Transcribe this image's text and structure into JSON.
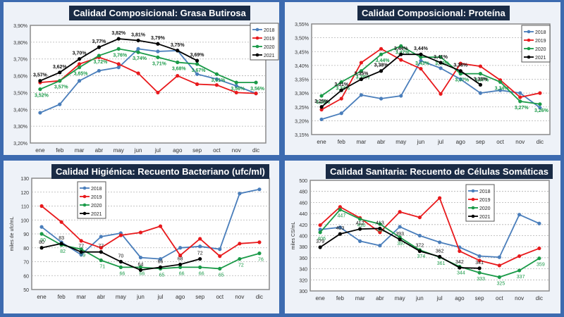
{
  "chart_data": [
    {
      "type": "line",
      "title": "Calidad Composicional: Grasa Butirosa",
      "xlabel": "",
      "ylabel": "",
      "categories": [
        "ene",
        "feb",
        "mar",
        "abr",
        "may",
        "jun",
        "jul",
        "ago",
        "sep",
        "oct",
        "nov",
        "dic"
      ],
      "ylim": [
        3.2,
        3.9
      ],
      "yticks": [
        "3,20%",
        "3,30%",
        "3,40%",
        "3,50%",
        "3,60%",
        "3,70%",
        "3,80%",
        "3,90%"
      ],
      "grid": true,
      "legend": "top-right",
      "series": [
        {
          "name": "2018",
          "color": "#4a7ebb",
          "values": [
            3.38,
            3.43,
            3.57,
            3.63,
            3.65,
            3.76,
            3.745,
            3.75,
            3.61,
            3.58,
            3.54,
            3.495
          ],
          "labels": null
        },
        {
          "name": "2019",
          "color": "#e8191c",
          "values": [
            3.56,
            3.57,
            3.67,
            3.71,
            3.67,
            3.615,
            3.5,
            3.6,
            3.55,
            3.545,
            3.5,
            3.495
          ],
          "labels": null
        },
        {
          "name": "2020",
          "color": "#1a9a48",
          "values": [
            3.52,
            3.57,
            3.65,
            3.72,
            3.76,
            3.74,
            3.71,
            3.68,
            3.67,
            3.61,
            3.56,
            3.56
          ],
          "labels": [
            "3,52%",
            "3,57%",
            "3,65%",
            "3,72%",
            "3,76%",
            "3,74%",
            "3,71%",
            "3,68%",
            "3,67%",
            "3,61%",
            "3,56%",
            "3,56%"
          ]
        },
        {
          "name": "2021",
          "color": "#000000",
          "values": [
            3.57,
            3.62,
            3.7,
            3.77,
            3.82,
            3.81,
            3.79,
            3.75,
            3.69,
            null,
            null,
            null
          ],
          "labels": [
            "3,57%",
            "3,62%",
            "3,70%",
            "3,77%",
            "3,82%",
            "3,81%",
            "3,79%",
            "3,75%",
            "3,69%",
            null,
            null,
            null
          ]
        }
      ]
    },
    {
      "type": "line",
      "title": "Calidad Composicional: Proteína",
      "xlabel": "",
      "ylabel": "",
      "categories": [
        "ene",
        "feb",
        "mar",
        "abr",
        "may",
        "jun",
        "jul",
        "ago",
        "sep",
        "oct",
        "nov",
        "dic"
      ],
      "ylim": [
        3.15,
        3.55
      ],
      "yticks": [
        "3,15%",
        "3,20%",
        "3,25%",
        "3,30%",
        "3,35%",
        "3,40%",
        "3,45%",
        "3,50%",
        "3,55%"
      ],
      "grid": true,
      "legend": "top-right",
      "series": [
        {
          "name": "2018",
          "color": "#4a7ebb",
          "values": [
            3.205,
            3.227,
            3.293,
            3.28,
            3.29,
            3.417,
            3.39,
            3.35,
            3.3,
            3.31,
            3.3,
            3.247
          ],
          "labels": null
        },
        {
          "name": "2019",
          "color": "#e8191c",
          "values": [
            3.24,
            3.28,
            3.41,
            3.46,
            3.42,
            3.388,
            3.297,
            3.407,
            3.397,
            3.347,
            3.285,
            3.3
          ],
          "labels": null
        },
        {
          "name": "2020",
          "color": "#1a9a48",
          "values": [
            3.29,
            3.34,
            3.38,
            3.44,
            3.47,
            3.43,
            3.43,
            3.37,
            3.37,
            3.34,
            3.27,
            3.26
          ],
          "labels": [
            "3,29%",
            "3,34%",
            "3,38%",
            "3,44%",
            "3,47%",
            "3,43%",
            "3,43%",
            "3,37%",
            "3,37%",
            "3,34%",
            "3,27%",
            "3,26%"
          ]
        },
        {
          "name": "2021",
          "color": "#000000",
          "values": [
            3.25,
            3.31,
            3.35,
            3.38,
            3.44,
            3.44,
            3.41,
            3.38,
            3.33,
            null,
            null,
            null
          ],
          "labels": [
            "3,25%",
            "3,31%",
            "3,35%",
            "3,38%",
            "3,44%",
            "3,44%",
            "3,41%",
            "3,38%",
            "3,33%",
            null,
            null,
            null
          ]
        }
      ]
    },
    {
      "type": "line",
      "title": "Calidad Higiénica: Recuento Bacteriano (ufc/ml)",
      "xlabel": "",
      "ylabel": "miles de ufc/mL",
      "categories": [
        "ene",
        "feb",
        "mar",
        "abr",
        "may",
        "jun",
        "jul",
        "ago",
        "sep",
        "oct",
        "nov",
        "dic"
      ],
      "ylim": [
        50,
        130
      ],
      "yticks": [
        "50",
        "60",
        "70",
        "80",
        "90",
        "100",
        "110",
        "120",
        "130"
      ],
      "grid": true,
      "legend": "top-left",
      "series": [
        {
          "name": "2018",
          "color": "#4a7ebb",
          "values": [
            95,
            84,
            75,
            88,
            90.5,
            73,
            72,
            80,
            81,
            79,
            119,
            122
          ],
          "labels": null
        },
        {
          "name": "2019",
          "color": "#e8191c",
          "values": [
            110,
            98.5,
            85,
            80,
            89,
            91,
            95.5,
            74.5,
            86.5,
            74,
            83,
            84
          ],
          "labels": null
        },
        {
          "name": "2020",
          "color": "#1a9a48",
          "values": [
            90,
            82,
            79,
            71,
            66,
            66,
            65,
            66,
            66,
            65,
            72,
            76
          ],
          "labels": [
            "90",
            "82",
            "79",
            "71",
            "66",
            "66",
            "65",
            "66",
            "66",
            "65",
            "72",
            "76"
          ]
        },
        {
          "name": "2021",
          "color": "#000000",
          "values": [
            80,
            83,
            77,
            77,
            70,
            64,
            66,
            68,
            72,
            null,
            null,
            null
          ],
          "labels": [
            "80",
            "83",
            "77",
            "77",
            "70",
            "64",
            "66",
            "68",
            "72",
            null,
            null,
            null
          ]
        }
      ]
    },
    {
      "type": "line",
      "title": "Calidad Sanitaria: Recuento de Células Somáticas",
      "xlabel": "",
      "ylabel": "miles CS/mL",
      "categories": [
        "ene",
        "feb",
        "mar",
        "abr",
        "may",
        "jun",
        "jul",
        "ago",
        "sep",
        "oct",
        "nov",
        "dic"
      ],
      "ylim": [
        300,
        500
      ],
      "yticks": [
        "300",
        "320",
        "340",
        "360",
        "380",
        "400",
        "420",
        "440",
        "460",
        "480",
        "500"
      ],
      "grid": true,
      "legend": "top-right",
      "series": [
        {
          "name": "2018",
          "color": "#4a7ebb",
          "values": [
            411,
            415,
            390,
            382,
            416,
            400,
            388,
            379,
            363,
            361,
            438,
            422
          ],
          "labels": null
        },
        {
          "name": "2019",
          "color": "#e8191c",
          "values": [
            419,
            452,
            432,
            406,
            443,
            433,
            468,
            372,
            355,
            346,
            363,
            377
          ],
          "labels": null
        },
        {
          "name": "2020",
          "color": "#1a9a48",
          "values": [
            406,
            447,
            430,
            421,
            397,
            374,
            361,
            344,
            333,
            325,
            337,
            359
          ],
          "labels": [
            "406",
            "447",
            "430",
            "421",
            "397",
            "374",
            "361",
            "344",
            "333",
            "325",
            "337",
            "359"
          ]
        },
        {
          "name": "2021",
          "color": "#000000",
          "values": [
            379,
            403,
            412,
            413,
            393,
            372,
            362,
            342,
            341,
            null,
            null,
            null
          ],
          "labels": [
            "379",
            "403",
            "412",
            "413",
            "393",
            "372",
            "362",
            "342",
            "341",
            null,
            null,
            null
          ]
        }
      ]
    }
  ]
}
